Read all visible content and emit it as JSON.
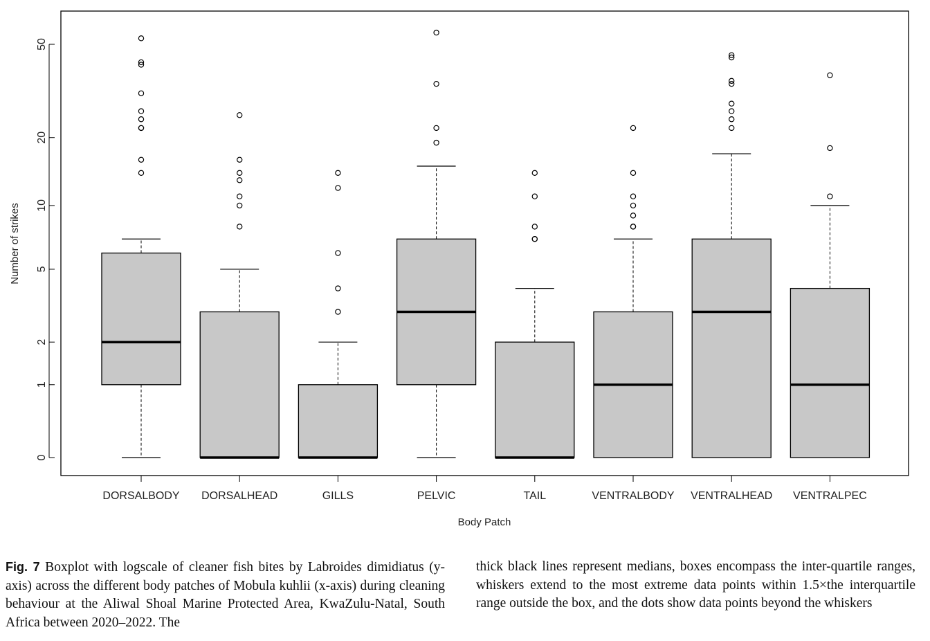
{
  "chart_data": {
    "type": "box",
    "xlabel": "Body Patch",
    "ylabel": "Number of strikes",
    "yscale": "log1p",
    "yticks": [
      0,
      1,
      2,
      5,
      10,
      20,
      50
    ],
    "ylim": [
      0,
      57
    ],
    "colors": {
      "box_fill": "#c8c8c8",
      "stroke": "#000000"
    },
    "categories": [
      "DORSALBODY",
      "DORSALHEAD",
      "GILLS",
      "PELVIC",
      "TAIL",
      "VENTRALBODY",
      "VENTRALHEAD",
      "VENTRALPEC"
    ],
    "boxes": [
      {
        "category": "DORSALBODY",
        "whisker_low": 0,
        "q1": 1,
        "median": 2,
        "q3": 6,
        "whisker_high": 7,
        "outliers": [
          14,
          16,
          22,
          22,
          24,
          26,
          31,
          41,
          42,
          53
        ]
      },
      {
        "category": "DORSALHEAD",
        "whisker_low": 0,
        "q1": 0,
        "median": 0,
        "q3": 3,
        "whisker_high": 5,
        "outliers": [
          8,
          10,
          11,
          13,
          14,
          16,
          25
        ]
      },
      {
        "category": "GILLS",
        "whisker_low": 0,
        "q1": 0,
        "median": 0,
        "q3": 1,
        "whisker_high": 2,
        "outliers": [
          3,
          4,
          6,
          12,
          14
        ]
      },
      {
        "category": "PELVIC",
        "whisker_low": 0,
        "q1": 1,
        "median": 3,
        "q3": 7,
        "whisker_high": 15,
        "outliers": [
          19,
          22,
          34,
          56
        ]
      },
      {
        "category": "TAIL",
        "whisker_low": 0,
        "q1": 0,
        "median": 0,
        "q3": 2,
        "whisker_high": 4,
        "outliers": [
          7,
          7,
          8,
          11,
          14
        ]
      },
      {
        "category": "VENTRALBODY",
        "whisker_low": 0,
        "q1": 0,
        "median": 1,
        "q3": 3,
        "whisker_high": 7,
        "outliers": [
          8,
          8,
          9,
          10,
          11,
          14,
          22
        ]
      },
      {
        "category": "VENTRALHEAD",
        "whisker_low": 0,
        "q1": 0,
        "median": 3,
        "q3": 7,
        "whisker_high": 17,
        "outliers": [
          22,
          24,
          26,
          28,
          34,
          35,
          44,
          45
        ]
      },
      {
        "category": "VENTRALPEC",
        "whisker_low": 0,
        "q1": 0,
        "median": 1,
        "q3": 4,
        "whisker_high": 10,
        "outliers": [
          11,
          18,
          37
        ]
      }
    ]
  },
  "caption": {
    "label": "Fig. 7",
    "text_left": " Boxplot with logscale of cleaner fish bites by Labroides dimidiatus (y-axis) across the different body patches of Mobula kuhlii (x-axis) during cleaning behaviour at the Aliwal Shoal Marine Pro­tected Area, KwaZulu-Natal, South Africa between 2020–2022. The",
    "text_right": "thick black lines represent medians, boxes encompass the inter-quar­tile ranges, whiskers extend to the most extreme data points within 1.5×the interquartile range outside the box, and the dots show data points beyond the whiskers"
  }
}
